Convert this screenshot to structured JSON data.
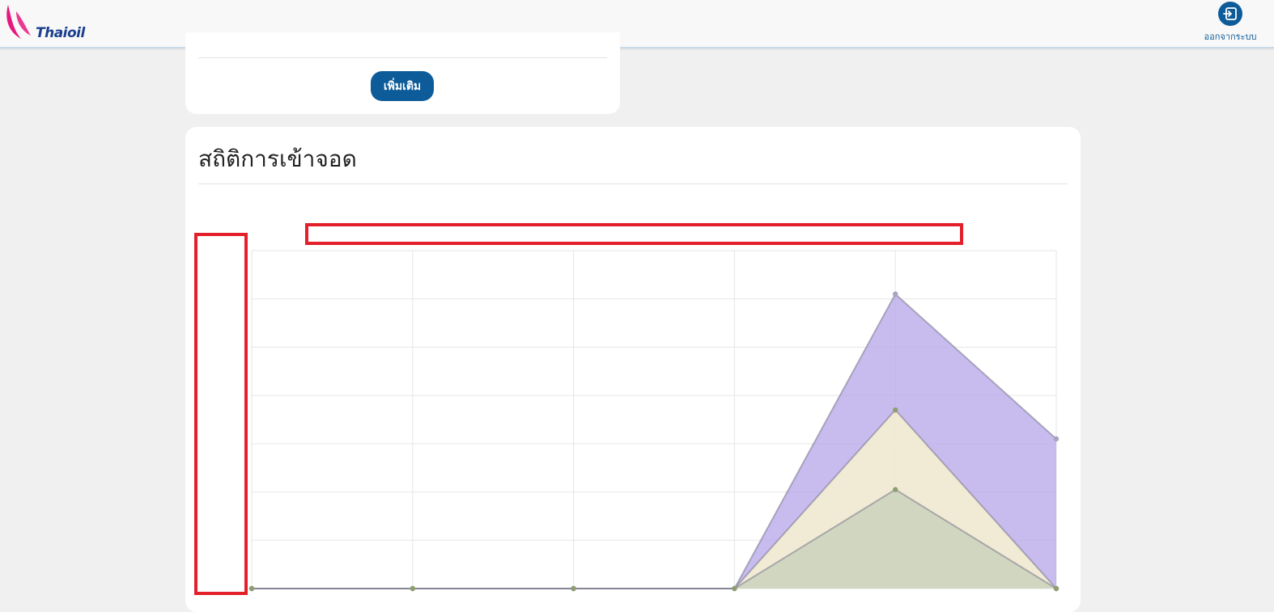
{
  "header": {
    "logo_text": "Thaioil",
    "logout_label": "ออกจากระบบ",
    "logout_icon": "logout-icon"
  },
  "top_card": {
    "more_button_label": "เพิ่มเติม"
  },
  "stats_card": {
    "title": "สถิติการเข้าจอด"
  },
  "colors": {
    "brand_blue": "#0d5c99",
    "logo_pink": "#e6177e",
    "highlight_red": "#e3202a"
  },
  "chart_data": {
    "type": "area",
    "title": "",
    "xlabel": "",
    "ylabel": "",
    "categories": [
      "",
      "",
      "",
      "",
      "",
      ""
    ],
    "ylim": [
      0,
      7
    ],
    "grid": true,
    "series": [
      {
        "values": [
          0,
          0,
          0,
          0,
          6.1,
          3.1
        ],
        "color": "#b6a6e9"
      },
      {
        "values": [
          0,
          0,
          0,
          0,
          3.7,
          0
        ],
        "color": "#fffacc"
      },
      {
        "values": [
          0,
          0,
          0,
          0,
          2.05,
          0
        ],
        "color": "#c5cfb8"
      }
    ]
  }
}
